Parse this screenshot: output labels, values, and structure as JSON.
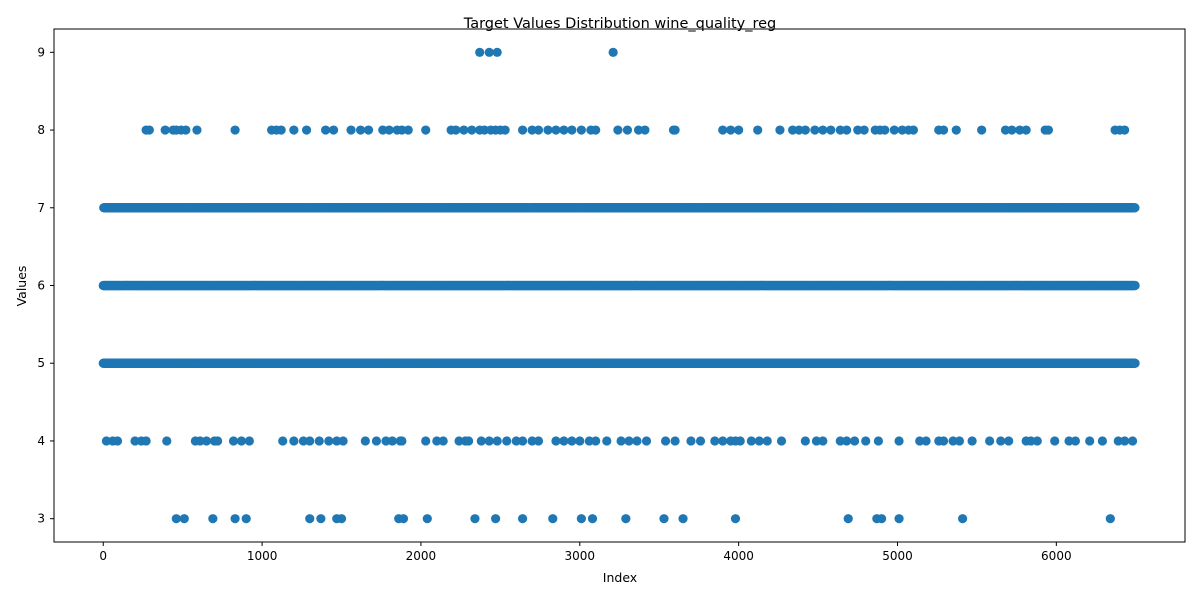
{
  "chart_data": {
    "type": "scatter",
    "title": "Target Values Distribution wine_quality_reg",
    "xlabel": "Index",
    "ylabel": "Values",
    "xlim": [
      -310,
      6810
    ],
    "ylim": [
      2.7,
      9.3
    ],
    "xticks": [
      0,
      1000,
      2000,
      3000,
      4000,
      5000,
      6000
    ],
    "yticks": [
      3,
      4,
      5,
      6,
      7,
      8,
      9
    ],
    "grid": false,
    "marker_color": "#1f77b4",
    "n_points": 6497,
    "dense_levels": [
      5,
      6,
      7
    ],
    "sparse_points": {
      "9": [
        2370,
        2430,
        2480,
        3210
      ],
      "8": [
        270,
        290,
        390,
        440,
        460,
        490,
        520,
        590,
        830,
        1060,
        1090,
        1120,
        1200,
        1280,
        1400,
        1450,
        1560,
        1620,
        1670,
        1760,
        1800,
        1850,
        1880,
        1920,
        2030,
        2190,
        2220,
        2270,
        2320,
        2370,
        2400,
        2440,
        2470,
        2500,
        2530,
        2640,
        2700,
        2740,
        2800,
        2850,
        2900,
        2950,
        3010,
        3070,
        3100,
        3240,
        3300,
        3370,
        3410,
        3590,
        3600,
        3900,
        3950,
        4000,
        4120,
        4260,
        4340,
        4380,
        4420,
        4480,
        4530,
        4580,
        4640,
        4680,
        4750,
        4790,
        4860,
        4890,
        4920,
        4980,
        5030,
        5070,
        5100,
        5260,
        5290,
        5370,
        5530,
        5680,
        5720,
        5770,
        5810,
        5930,
        5950,
        6370,
        6400,
        6430
      ],
      "4": [
        20,
        60,
        90,
        200,
        240,
        270,
        400,
        580,
        610,
        650,
        700,
        720,
        820,
        870,
        920,
        1130,
        1200,
        1260,
        1300,
        1360,
        1420,
        1470,
        1510,
        1650,
        1720,
        1780,
        1820,
        1870,
        1880,
        2030,
        2100,
        2140,
        2240,
        2280,
        2300,
        2380,
        2430,
        2480,
        2540,
        2600,
        2640,
        2700,
        2740,
        2850,
        2900,
        2950,
        3000,
        3060,
        3100,
        3170,
        3260,
        3310,
        3360,
        3420,
        3540,
        3600,
        3700,
        3760,
        3850,
        3900,
        3950,
        3980,
        4010,
        4080,
        4130,
        4180,
        4270,
        4420,
        4490,
        4530,
        4640,
        4680,
        4730,
        4800,
        4880,
        5010,
        5140,
        5180,
        5260,
        5290,
        5350,
        5390,
        5470,
        5580,
        5650,
        5700,
        5810,
        5840,
        5880,
        5990,
        6080,
        6120,
        6210,
        6290,
        6390,
        6430,
        6480
      ],
      "3": [
        460,
        510,
        690,
        830,
        900,
        1300,
        1370,
        1470,
        1500,
        1860,
        1890,
        2040,
        2340,
        2470,
        2640,
        2830,
        3010,
        3080,
        3290,
        3530,
        3650,
        3980,
        4690,
        4870,
        4900,
        5010,
        5410,
        6340
      ]
    }
  }
}
